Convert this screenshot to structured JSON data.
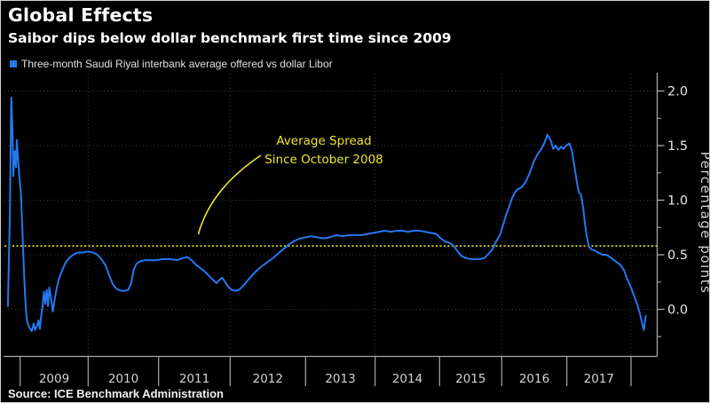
{
  "header": {
    "title": "Global Effects",
    "subtitle": "Saibor dips below dollar benchmark first time since 2009",
    "legend": {
      "swatch_color": "#2478f0",
      "label": "Three-month Saudi Riyal interbank average offered vs dollar Libor"
    }
  },
  "footer": {
    "source": "Source: ICE Benchmark Administration"
  },
  "colors": {
    "background": "#000000",
    "border": "#cfcfcf",
    "axis": "#a9a9a9",
    "grid": "#3c3c3c",
    "tick_label": "#e6e6e6",
    "year_label": "#d2d2d2",
    "series_blue": "#2478f0",
    "average_yellow": "#c9c31d",
    "annotation_yellow": "#ece632"
  },
  "chart_data": {
    "type": "line",
    "title": "Saibor dips below dollar benchmark first time since 2009",
    "x_axis": {
      "tick_label_years": [
        "2009",
        "2010",
        "2011",
        "2012",
        "2013",
        "2014",
        "2015",
        "2016",
        "2017"
      ],
      "boundary_years": [
        2009,
        2010,
        2011,
        2012,
        2013,
        2014,
        2015,
        2016,
        2017,
        2018
      ],
      "gridline_years": [
        2010,
        2012,
        2014,
        2016,
        2018
      ],
      "range_decimal_years": [
        2008.76,
        2018.41
      ]
    },
    "y_axis": {
      "label": "Percentage points",
      "side": "right",
      "tick_labels": [
        "0.0",
        "0.5",
        "1.0",
        "1.5",
        "2.0"
      ],
      "tick_values": [
        0.0,
        0.5,
        1.0,
        1.5,
        2.0
      ],
      "minor_tick_values": [
        -0.25,
        0.25,
        0.75,
        1.25,
        1.75
      ],
      "range": [
        -0.45,
        2.17
      ]
    },
    "grid": {
      "style": "dotted"
    },
    "average_line": {
      "value": 0.58,
      "style": "dotted",
      "label_line1": "Average Spread",
      "label_line2": "Since October 2008"
    },
    "series": [
      {
        "name": "Three-month Saudi Riyal interbank average offered vs dollar Libor",
        "unit": "percentage points",
        "x_unit": "decimal_year",
        "points": [
          [
            2008.82,
            0.03
          ],
          [
            2008.85,
            0.9
          ],
          [
            2008.87,
            1.94
          ],
          [
            2008.89,
            1.58
          ],
          [
            2008.9,
            1.22
          ],
          [
            2008.92,
            1.45
          ],
          [
            2008.94,
            1.3
          ],
          [
            2008.95,
            1.55
          ],
          [
            2008.97,
            1.38
          ],
          [
            2008.99,
            1.2
          ],
          [
            2009.01,
            1.08
          ],
          [
            2009.03,
            0.78
          ],
          [
            2009.05,
            0.45
          ],
          [
            2009.07,
            0.15
          ],
          [
            2009.09,
            -0.05
          ],
          [
            2009.11,
            -0.13
          ],
          [
            2009.14,
            -0.17
          ],
          [
            2009.17,
            -0.2
          ],
          [
            2009.2,
            -0.13
          ],
          [
            2009.22,
            -0.19
          ],
          [
            2009.25,
            -0.15
          ],
          [
            2009.27,
            -0.1
          ],
          [
            2009.29,
            -0.18
          ],
          [
            2009.31,
            -0.06
          ],
          [
            2009.33,
            0.03
          ],
          [
            2009.35,
            0.16
          ],
          [
            2009.37,
            0.05
          ],
          [
            2009.39,
            0.18
          ],
          [
            2009.41,
            0.03
          ],
          [
            2009.43,
            0.2
          ],
          [
            2009.46,
            0.08
          ],
          [
            2009.48,
            -0.02
          ],
          [
            2009.51,
            0.1
          ],
          [
            2009.54,
            0.2
          ],
          [
            2009.57,
            0.28
          ],
          [
            2009.62,
            0.36
          ],
          [
            2009.67,
            0.43
          ],
          [
            2009.72,
            0.47
          ],
          [
            2009.78,
            0.5
          ],
          [
            2009.85,
            0.52
          ],
          [
            2009.92,
            0.52
          ],
          [
            2010.0,
            0.53
          ],
          [
            2010.07,
            0.52
          ],
          [
            2010.13,
            0.5
          ],
          [
            2010.19,
            0.46
          ],
          [
            2010.25,
            0.4
          ],
          [
            2010.3,
            0.31
          ],
          [
            2010.35,
            0.23
          ],
          [
            2010.4,
            0.19
          ],
          [
            2010.46,
            0.17
          ],
          [
            2010.52,
            0.17
          ],
          [
            2010.57,
            0.18
          ],
          [
            2010.61,
            0.24
          ],
          [
            2010.65,
            0.37
          ],
          [
            2010.69,
            0.42
          ],
          [
            2010.74,
            0.44
          ],
          [
            2010.81,
            0.45
          ],
          [
            2010.89,
            0.45
          ],
          [
            2010.97,
            0.45
          ],
          [
            2011.06,
            0.46
          ],
          [
            2011.16,
            0.46
          ],
          [
            2011.26,
            0.45
          ],
          [
            2011.34,
            0.47
          ],
          [
            2011.4,
            0.48
          ],
          [
            2011.46,
            0.45
          ],
          [
            2011.52,
            0.41
          ],
          [
            2011.58,
            0.38
          ],
          [
            2011.64,
            0.35
          ],
          [
            2011.7,
            0.31
          ],
          [
            2011.76,
            0.27
          ],
          [
            2011.81,
            0.24
          ],
          [
            2011.85,
            0.27
          ],
          [
            2011.89,
            0.29
          ],
          [
            2011.93,
            0.25
          ],
          [
            2011.97,
            0.21
          ],
          [
            2012.02,
            0.18
          ],
          [
            2012.07,
            0.17
          ],
          [
            2012.12,
            0.18
          ],
          [
            2012.18,
            0.22
          ],
          [
            2012.25,
            0.28
          ],
          [
            2012.33,
            0.34
          ],
          [
            2012.41,
            0.39
          ],
          [
            2012.49,
            0.43
          ],
          [
            2012.57,
            0.47
          ],
          [
            2012.65,
            0.52
          ],
          [
            2012.72,
            0.56
          ],
          [
            2012.79,
            0.6
          ],
          [
            2012.86,
            0.63
          ],
          [
            2012.93,
            0.65
          ],
          [
            2013.0,
            0.66
          ],
          [
            2013.08,
            0.67
          ],
          [
            2013.17,
            0.66
          ],
          [
            2013.26,
            0.65
          ],
          [
            2013.35,
            0.66
          ],
          [
            2013.44,
            0.68
          ],
          [
            2013.53,
            0.67
          ],
          [
            2013.62,
            0.68
          ],
          [
            2013.71,
            0.68
          ],
          [
            2013.8,
            0.68
          ],
          [
            2013.89,
            0.69
          ],
          [
            2013.97,
            0.7
          ],
          [
            2014.06,
            0.71
          ],
          [
            2014.15,
            0.72
          ],
          [
            2014.24,
            0.71
          ],
          [
            2014.33,
            0.72
          ],
          [
            2014.42,
            0.72
          ],
          [
            2014.51,
            0.71
          ],
          [
            2014.6,
            0.72
          ],
          [
            2014.69,
            0.72
          ],
          [
            2014.78,
            0.71
          ],
          [
            2014.87,
            0.7
          ],
          [
            2014.95,
            0.69
          ],
          [
            2015.02,
            0.65
          ],
          [
            2015.09,
            0.62
          ],
          [
            2015.16,
            0.61
          ],
          [
            2015.23,
            0.58
          ],
          [
            2015.29,
            0.53
          ],
          [
            2015.35,
            0.49
          ],
          [
            2015.42,
            0.47
          ],
          [
            2015.5,
            0.46
          ],
          [
            2015.58,
            0.46
          ],
          [
            2015.65,
            0.46
          ],
          [
            2015.72,
            0.47
          ],
          [
            2015.79,
            0.51
          ],
          [
            2015.85,
            0.55
          ],
          [
            2015.91,
            0.62
          ],
          [
            2015.97,
            0.68
          ],
          [
            2016.02,
            0.77
          ],
          [
            2016.07,
            0.87
          ],
          [
            2016.12,
            0.95
          ],
          [
            2016.16,
            1.02
          ],
          [
            2016.2,
            1.07
          ],
          [
            2016.25,
            1.1
          ],
          [
            2016.31,
            1.12
          ],
          [
            2016.37,
            1.17
          ],
          [
            2016.43,
            1.25
          ],
          [
            2016.49,
            1.35
          ],
          [
            2016.55,
            1.42
          ],
          [
            2016.61,
            1.47
          ],
          [
            2016.66,
            1.53
          ],
          [
            2016.7,
            1.6
          ],
          [
            2016.75,
            1.55
          ],
          [
            2016.79,
            1.47
          ],
          [
            2016.83,
            1.5
          ],
          [
            2016.87,
            1.46
          ],
          [
            2016.91,
            1.49
          ],
          [
            2016.95,
            1.47
          ],
          [
            2016.99,
            1.5
          ],
          [
            2017.04,
            1.52
          ],
          [
            2017.08,
            1.45
          ],
          [
            2017.12,
            1.3
          ],
          [
            2017.16,
            1.15
          ],
          [
            2017.19,
            1.07
          ],
          [
            2017.22,
            1.05
          ],
          [
            2017.25,
            0.95
          ],
          [
            2017.28,
            0.8
          ],
          [
            2017.31,
            0.67
          ],
          [
            2017.34,
            0.58
          ],
          [
            2017.38,
            0.55
          ],
          [
            2017.43,
            0.54
          ],
          [
            2017.49,
            0.52
          ],
          [
            2017.55,
            0.5
          ],
          [
            2017.62,
            0.5
          ],
          [
            2017.69,
            0.47
          ],
          [
            2017.76,
            0.44
          ],
          [
            2017.83,
            0.41
          ],
          [
            2017.89,
            0.36
          ],
          [
            2017.94,
            0.28
          ],
          [
            2018.0,
            0.2
          ],
          [
            2018.05,
            0.12
          ],
          [
            2018.1,
            0.04
          ],
          [
            2018.14,
            -0.04
          ],
          [
            2018.17,
            -0.12
          ],
          [
            2018.2,
            -0.19
          ],
          [
            2018.23,
            -0.06
          ]
        ]
      }
    ]
  }
}
